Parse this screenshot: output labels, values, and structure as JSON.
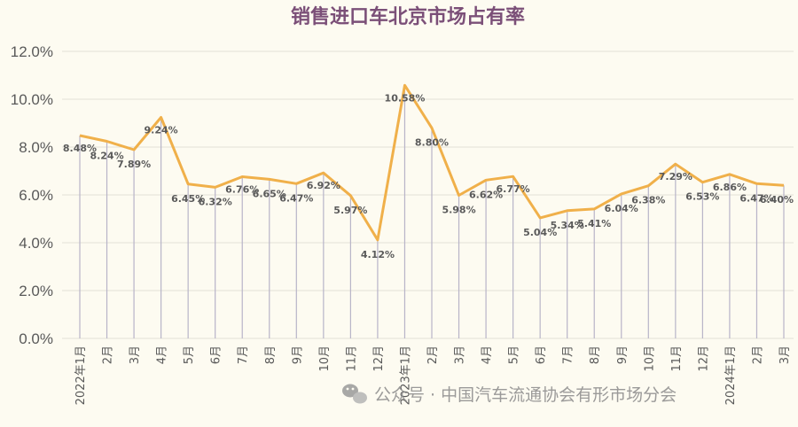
{
  "chart_data": {
    "type": "line",
    "title": "销售进口车北京市场占有率",
    "categories": [
      "2022年1月",
      "2月",
      "3月",
      "4月",
      "5月",
      "6月",
      "7月",
      "8月",
      "9月",
      "10月",
      "11月",
      "12月",
      "2023年1月",
      "2月",
      "3月",
      "4月",
      "5月",
      "6月",
      "7月",
      "8月",
      "9月",
      "10月",
      "11月",
      "12月",
      "2024年1月",
      "2月",
      "3月"
    ],
    "values": [
      8.48,
      8.24,
      7.89,
      9.24,
      6.45,
      6.32,
      6.76,
      6.65,
      6.47,
      6.92,
      5.97,
      4.12,
      10.58,
      8.8,
      5.98,
      6.62,
      6.77,
      5.04,
      5.34,
      5.41,
      6.04,
      6.38,
      7.29,
      6.53,
      6.86,
      6.47,
      6.4
    ],
    "value_labels": [
      "8.48%",
      "8.24%",
      "7.89%",
      "9.24%",
      "6.45%",
      "6.32%",
      "6.76%",
      "6.65%",
      "6.47%",
      "6.92%",
      "5.97%",
      "4.12%",
      "10.58%",
      "8.80%",
      "5.98%",
      "6.62%",
      "6.77%",
      "5.04%",
      "5.34%",
      "5.41%",
      "6.04%",
      "6.38%",
      "7.29%",
      "6.53%",
      "6.86%",
      "6.47%",
      "6.40%"
    ],
    "ylim": [
      0,
      12
    ],
    "yticks": [
      "0.0%",
      "2.0%",
      "4.0%",
      "6.0%",
      "8.0%",
      "10.0%",
      "12.0%"
    ],
    "ytick_values": [
      0,
      2,
      4,
      6,
      8,
      10,
      12
    ],
    "grid": true,
    "colors": {
      "line": "#f0b04a",
      "drop": "#b8b4c8",
      "grid": "#e2e0d6",
      "title": "#7b4f78"
    }
  },
  "watermark": {
    "text": "公众号 · 中国汽车流通协会有形市场分会",
    "icon": "wechat-icon"
  }
}
